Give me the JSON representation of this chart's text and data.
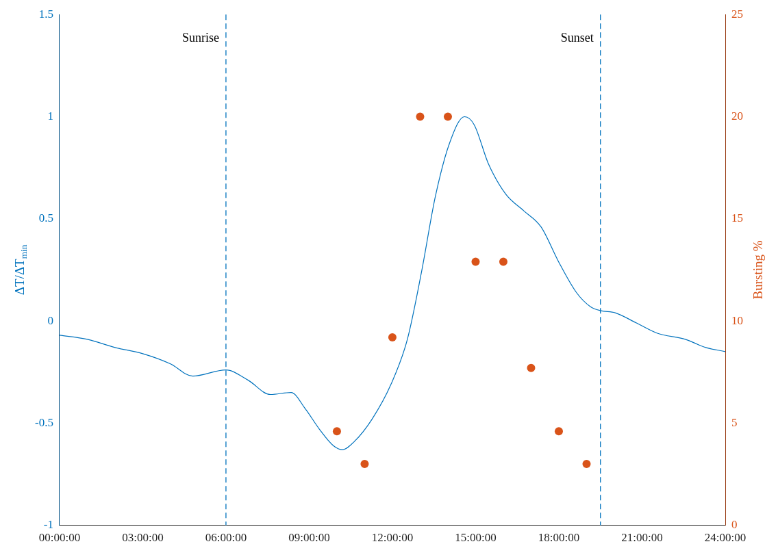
{
  "chart_data": {
    "type": "line",
    "ylabel": "ΔT/ΔT$_{min}$",
    "y2label": "Bursting %",
    "xlim": [
      0,
      24
    ],
    "xticks": [
      {
        "value": 0,
        "label": "00:00:00"
      },
      {
        "value": 3,
        "label": "03:00:00"
      },
      {
        "value": 6,
        "label": "06:00:00"
      },
      {
        "value": 9,
        "label": "09:00:00"
      },
      {
        "value": 12,
        "label": "12:00:00"
      },
      {
        "value": 15,
        "label": "15:00:00"
      },
      {
        "value": 18,
        "label": "18:00:00"
      },
      {
        "value": 21,
        "label": "21:00:00"
      },
      {
        "value": 24,
        "label": "24:00:00"
      }
    ],
    "ylim": [
      -1,
      1.5
    ],
    "yticks": [
      -1,
      -0.5,
      0,
      0.5,
      1,
      1.5
    ],
    "y2lim": [
      0,
      25
    ],
    "y2ticks": [
      0,
      5,
      10,
      15,
      20,
      25
    ],
    "grid": false,
    "legend": false,
    "series": [
      {
        "type": "line",
        "color": "#0072bd",
        "marker": "none",
        "line_style": "solid",
        "x": [
          0,
          1,
          2,
          3,
          4,
          4.8,
          6,
          6.8,
          7.6,
          8.35,
          8.86,
          9.37,
          9.87,
          10.2,
          10.63,
          11.27,
          11.95,
          12.54,
          13.05,
          13.55,
          14.06,
          14.6,
          14.95,
          15.46,
          16.09,
          16.73,
          17.36,
          17.99,
          18.63,
          19.14,
          19.52,
          20.03,
          20.8,
          21.55,
          22.56,
          23.3,
          24
        ],
        "values": [
          -0.07,
          -0.09,
          -0.13,
          -0.16,
          -0.21,
          -0.27,
          -0.24,
          -0.29,
          -0.36,
          -0.35,
          -0.43,
          -0.53,
          -0.61,
          -0.63,
          -0.59,
          -0.48,
          -0.31,
          -0.09,
          0.24,
          0.61,
          0.87,
          1.0,
          0.96,
          0.77,
          0.62,
          0.54,
          0.46,
          0.29,
          0.14,
          0.07,
          0.05,
          0.04,
          -0.01,
          -0.06,
          -0.09,
          -0.13,
          -0.15
        ]
      },
      {
        "type": "scatter",
        "axis": "y2",
        "color": "#d95319",
        "marker": "circle",
        "x": [
          10,
          11,
          12,
          13,
          14,
          15,
          16,
          17,
          18,
          19
        ],
        "values": [
          4.6,
          3.0,
          9.2,
          20,
          20,
          12.9,
          12.9,
          7.7,
          4.6,
          3.0
        ]
      }
    ],
    "ref_lines": [
      {
        "axis": "x",
        "value": 6,
        "label": "Sunrise",
        "color": "#0072bd",
        "line_style": "dashed"
      },
      {
        "axis": "x",
        "value": 19.5,
        "label": "Sunset",
        "color": "#0072bd",
        "line_style": "dashed"
      }
    ]
  }
}
